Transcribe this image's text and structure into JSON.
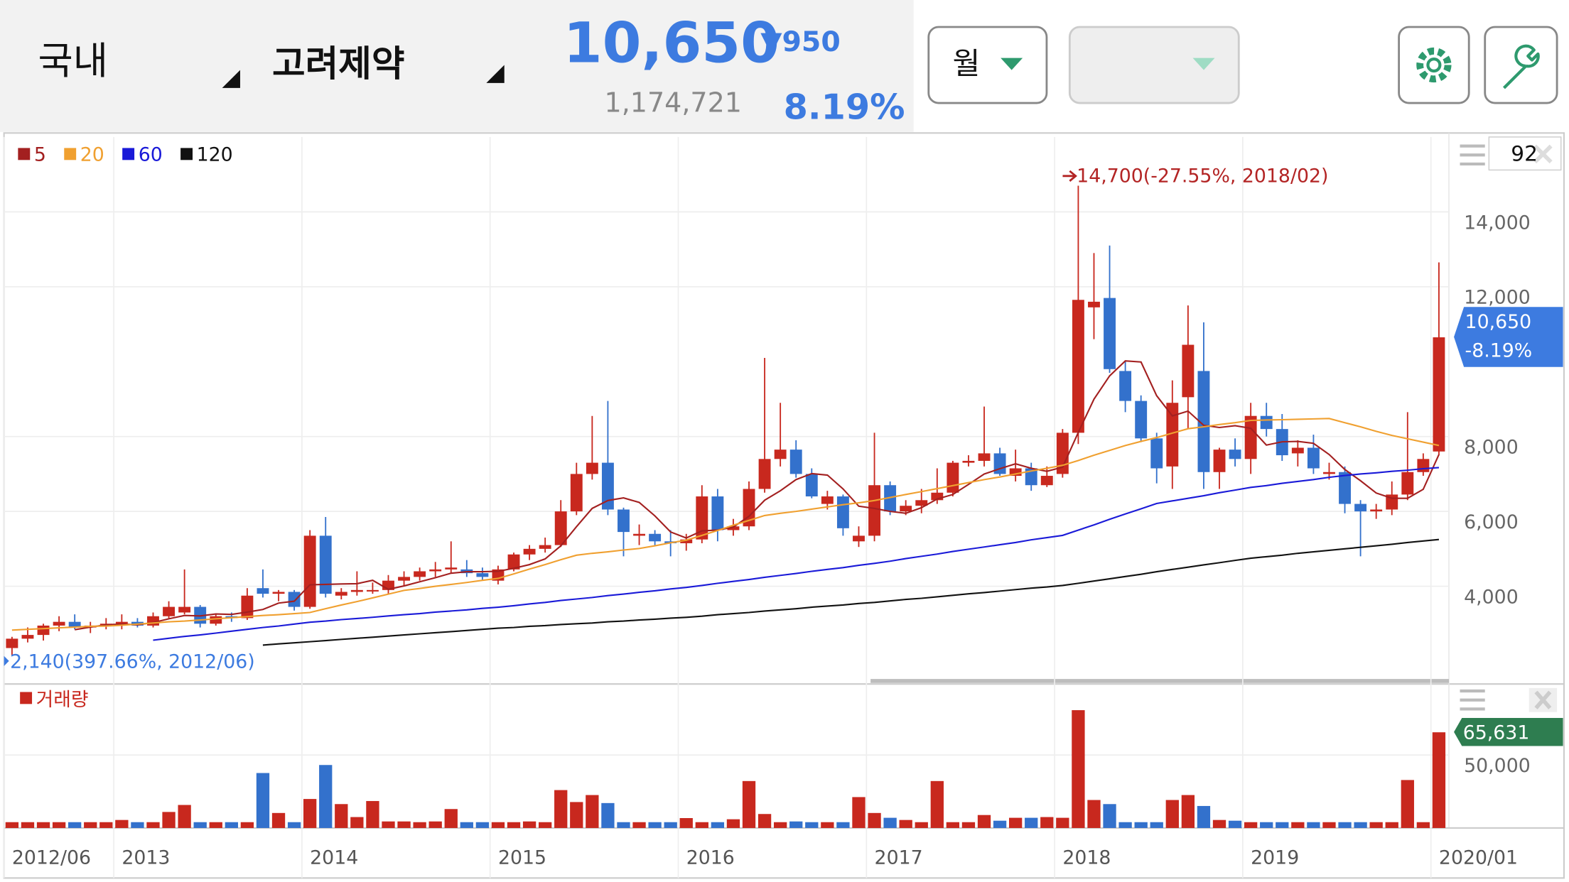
{
  "header": {
    "market": "국내",
    "stock": "고려제약",
    "price": "10,650",
    "change": "▼950",
    "volume": "1,174,721",
    "change_rate": "8.19%",
    "period": "월"
  },
  "chart_data": [
    {
      "type": "candlestick",
      "categories": [
        "2012/06",
        null,
        null,
        null,
        null,
        null,
        null,
        "2013",
        null,
        null,
        null,
        null,
        null,
        null,
        null,
        null,
        null,
        null,
        null,
        "2014",
        null,
        null,
        null,
        null,
        null,
        null,
        null,
        null,
        null,
        null,
        null,
        "2015",
        null,
        null,
        null,
        null,
        null,
        null,
        null,
        null,
        null,
        null,
        null,
        "2016",
        null,
        null,
        null,
        null,
        null,
        null,
        null,
        null,
        null,
        null,
        null,
        "2017",
        null,
        null,
        null,
        null,
        null,
        null,
        null,
        null,
        null,
        null,
        null,
        "2018",
        null,
        null,
        null,
        null,
        null,
        null,
        null,
        null,
        null,
        null,
        null,
        "2019",
        null,
        null,
        null,
        null,
        null,
        null,
        null,
        null,
        null,
        null,
        null,
        "2020/01"
      ],
      "ohlc": [
        [
          2350,
          2650,
          2140,
          2600
        ],
        [
          2600,
          2900,
          2500,
          2700
        ],
        [
          2700,
          3000,
          2550,
          2950
        ],
        [
          2950,
          3200,
          2800,
          3050
        ],
        [
          3050,
          3250,
          2850,
          2900
        ],
        [
          2900,
          3050,
          2750,
          2950
        ],
        [
          2950,
          3150,
          2850,
          3000
        ],
        [
          3000,
          3250,
          2850,
          3050
        ],
        [
          3050,
          3150,
          2900,
          2950
        ],
        [
          2950,
          3300,
          2900,
          3200
        ],
        [
          3200,
          3600,
          3150,
          3450
        ],
        [
          3300,
          4450,
          3250,
          3450
        ],
        [
          3450,
          3500,
          2900,
          3000
        ],
        [
          3000,
          3250,
          2950,
          3200
        ],
        [
          3200,
          3300,
          3050,
          3150
        ],
        [
          3150,
          3950,
          3100,
          3750
        ],
        [
          3950,
          4450,
          3700,
          3800
        ],
        [
          3800,
          3900,
          3600,
          3850
        ],
        [
          3850,
          3900,
          3350,
          3450
        ],
        [
          3450,
          5500,
          3400,
          5350
        ],
        [
          5350,
          5850,
          3700,
          3800
        ],
        [
          3750,
          3950,
          3650,
          3850
        ],
        [
          3850,
          4400,
          3750,
          3900
        ],
        [
          3900,
          4100,
          3800,
          3900
        ],
        [
          3900,
          4300,
          3800,
          4150
        ],
        [
          4150,
          4400,
          4000,
          4250
        ],
        [
          4250,
          4500,
          4150,
          4400
        ],
        [
          4400,
          4650,
          4250,
          4450
        ],
        [
          4450,
          5200,
          4350,
          4500
        ],
        [
          4450,
          4700,
          4250,
          4350
        ],
        [
          4350,
          4500,
          4150,
          4250
        ],
        [
          4150,
          4550,
          4050,
          4450
        ],
        [
          4450,
          4900,
          4400,
          4850
        ],
        [
          4850,
          5100,
          4700,
          5000
        ],
        [
          5000,
          5300,
          4900,
          5100
        ],
        [
          5100,
          6300,
          5050,
          6000
        ],
        [
          6000,
          7300,
          5900,
          7000
        ],
        [
          7000,
          8550,
          6850,
          7300
        ],
        [
          7300,
          8950,
          5900,
          6050
        ],
        [
          6050,
          6100,
          4800,
          5450
        ],
        [
          5350,
          5650,
          5100,
          5400
        ],
        [
          5400,
          5500,
          5100,
          5200
        ],
        [
          5200,
          5500,
          4800,
          5150
        ],
        [
          5150,
          5400,
          4950,
          5250
        ],
        [
          5250,
          6700,
          5150,
          6400
        ],
        [
          6400,
          6600,
          5200,
          5500
        ],
        [
          5500,
          5800,
          5350,
          5600
        ],
        [
          5600,
          6800,
          5500,
          6600
        ],
        [
          6600,
          10100,
          6500,
          7400
        ],
        [
          7400,
          8900,
          7200,
          7650
        ],
        [
          7650,
          7900,
          6900,
          7000
        ],
        [
          7000,
          7150,
          6350,
          6400
        ],
        [
          6200,
          6550,
          6050,
          6400
        ],
        [
          6400,
          6450,
          5350,
          5550
        ],
        [
          5200,
          5600,
          5050,
          5350
        ],
        [
          5350,
          8100,
          5200,
          6700
        ],
        [
          6700,
          6800,
          5900,
          6000
        ],
        [
          6000,
          6300,
          5900,
          6150
        ],
        [
          6150,
          6600,
          5950,
          6300
        ],
        [
          6300,
          7150,
          6200,
          6500
        ],
        [
          6500,
          7350,
          6400,
          7300
        ],
        [
          7300,
          7500,
          7200,
          7350
        ],
        [
          7350,
          8800,
          7200,
          7550
        ],
        [
          7550,
          7700,
          6950,
          7000
        ],
        [
          6950,
          7650,
          6800,
          7150
        ],
        [
          7150,
          7300,
          6550,
          6700
        ],
        [
          6700,
          7200,
          6650,
          6950
        ],
        [
          7000,
          8200,
          6900,
          8100
        ],
        [
          8100,
          14700,
          7800,
          11650
        ],
        [
          11450,
          12900,
          10600,
          11600
        ],
        [
          11700,
          13100,
          9700,
          9800
        ],
        [
          9750,
          10000,
          8650,
          8950
        ],
        [
          8950,
          9100,
          7850,
          7950
        ],
        [
          7950,
          8100,
          6750,
          7150
        ],
        [
          7200,
          9500,
          6600,
          8900
        ],
        [
          9050,
          11500,
          8200,
          10450
        ],
        [
          9750,
          11050,
          6600,
          7050
        ],
        [
          7050,
          7700,
          6600,
          7650
        ],
        [
          7650,
          7950,
          7200,
          7400
        ],
        [
          7400,
          8900,
          7000,
          8550
        ],
        [
          8550,
          8900,
          8000,
          8200
        ],
        [
          8200,
          8600,
          7350,
          7500
        ],
        [
          7550,
          7900,
          7200,
          7700
        ],
        [
          7700,
          8050,
          7000,
          7150
        ],
        [
          7000,
          7300,
          6850,
          7050
        ],
        [
          7050,
          7200,
          5950,
          6200
        ],
        [
          6200,
          6300,
          4800,
          6000
        ],
        [
          6000,
          6200,
          5800,
          6050
        ],
        [
          6050,
          6800,
          5900,
          6450
        ],
        [
          6450,
          8650,
          6300,
          7050
        ],
        [
          7050,
          7550,
          6950,
          7400
        ],
        [
          7600,
          12650,
          7500,
          10650
        ]
      ],
      "up_color": "#c8281e",
      "down_color": "#3371cc",
      "series": [
        {
          "name": "5",
          "color": "#a32020",
          "values": [
            null,
            null,
            null,
            null,
            2840,
            2910,
            2970,
            2990,
            2970,
            3030,
            3130,
            3220,
            3210,
            3260,
            3250,
            3310,
            3380,
            3550,
            3600,
            4040,
            4050,
            4060,
            4070,
            4160,
            3920,
            4010,
            4120,
            4230,
            4350,
            4390,
            4390,
            4400,
            4480,
            4580,
            4730,
            5080,
            5590,
            6080,
            6290,
            6360,
            6240,
            5880,
            5450,
            5290,
            5480,
            5500,
            5580,
            5870,
            6300,
            6550,
            6850,
            7010,
            6970,
            6600,
            6140,
            6080,
            6000,
            5950,
            6100,
            6330,
            6450,
            6720,
            7000,
            7140,
            7270,
            7150,
            7070,
            7180,
            8110,
            9000,
            9620,
            10020,
            9990,
            9090,
            8550,
            8680,
            8300,
            8240,
            8290,
            8220,
            7770,
            7860,
            7870,
            7820,
            7520,
            7120,
            6820,
            6490,
            6350,
            6350,
            6590,
            7520
          ]
        },
        {
          "name": "20",
          "color": "#f0a030",
          "values": [
            2830,
            2850,
            2870,
            2890,
            2910,
            2930,
            2940,
            2960,
            2990,
            3020,
            3050,
            3070,
            3100,
            3130,
            3160,
            3190,
            3220,
            3240,
            3270,
            3300,
            3400,
            3500,
            3590,
            3690,
            3790,
            3890,
            3940,
            4000,
            4050,
            4100,
            4160,
            4210,
            4330,
            4460,
            4580,
            4710,
            4830,
            4880,
            4920,
            4970,
            5010,
            5080,
            5160,
            5230,
            5360,
            5490,
            5630,
            5760,
            5890,
            5950,
            6000,
            6060,
            6120,
            6180,
            6230,
            6290,
            6370,
            6450,
            6530,
            6610,
            6690,
            6770,
            6850,
            6920,
            7000,
            7080,
            7150,
            7230,
            7360,
            7500,
            7630,
            7760,
            7870,
            7970,
            8090,
            8210,
            8260,
            8320,
            8370,
            8430,
            8440,
            8450,
            8460,
            8470,
            8480,
            8370,
            8260,
            8140,
            8030,
            7940,
            7850,
            7760
          ]
        },
        {
          "name": "60",
          "color": "#1a1ad8",
          "values": [
            null,
            null,
            null,
            null,
            null,
            null,
            null,
            null,
            null,
            2560,
            2610,
            2660,
            2700,
            2750,
            2800,
            2850,
            2900,
            2940,
            2990,
            3040,
            3070,
            3110,
            3140,
            3170,
            3210,
            3240,
            3270,
            3310,
            3340,
            3370,
            3410,
            3440,
            3480,
            3530,
            3570,
            3620,
            3660,
            3700,
            3750,
            3790,
            3840,
            3880,
            3930,
            3970,
            4020,
            4080,
            4130,
            4180,
            4240,
            4290,
            4340,
            4400,
            4450,
            4500,
            4560,
            4610,
            4670,
            4740,
            4800,
            4860,
            4930,
            4990,
            5050,
            5110,
            5170,
            5240,
            5300,
            5360,
            5500,
            5640,
            5790,
            5930,
            6070,
            6210,
            6280,
            6350,
            6420,
            6500,
            6570,
            6640,
            6690,
            6750,
            6800,
            6850,
            6910,
            6960,
            7000,
            7030,
            7070,
            7100,
            7140,
            7170
          ]
        },
        {
          "name": "120",
          "color": "#111111",
          "values": [
            null,
            null,
            null,
            null,
            null,
            null,
            null,
            null,
            null,
            null,
            null,
            null,
            null,
            null,
            null,
            null,
            2430,
            2460,
            2490,
            2520,
            2550,
            2580,
            2610,
            2640,
            2670,
            2700,
            2730,
            2760,
            2790,
            2820,
            2850,
            2880,
            2900,
            2930,
            2950,
            2980,
            3000,
            3020,
            3050,
            3070,
            3100,
            3120,
            3150,
            3170,
            3200,
            3240,
            3270,
            3300,
            3340,
            3370,
            3400,
            3440,
            3470,
            3500,
            3540,
            3570,
            3610,
            3650,
            3680,
            3720,
            3760,
            3800,
            3830,
            3870,
            3910,
            3950,
            3980,
            4020,
            4080,
            4140,
            4200,
            4260,
            4320,
            4390,
            4450,
            4510,
            4570,
            4630,
            4690,
            4750,
            4790,
            4830,
            4880,
            4920,
            4960,
            5000,
            5040,
            5080,
            5120,
            5170,
            5210,
            5250
          ]
        }
      ],
      "ylim": [
        1550,
        16000
      ],
      "yticks": [
        {
          "value": 4000,
          "label": "4,000"
        },
        {
          "value": 6000,
          "label": "6,000"
        },
        {
          "value": 8000,
          "label": "8,000"
        },
        {
          "value": 12000,
          "label": "12,000"
        },
        {
          "value": 14000,
          "label": "14,000"
        }
      ],
      "grid": true,
      "annotations": {
        "high": "14,700(-27.55%, 2018/02)",
        "low": "2,140(397.66%, 2012/06)"
      },
      "last_tag": {
        "price": "10,650",
        "change": "-8.19%"
      },
      "zoom_count": 92
    },
    {
      "type": "bar",
      "series": [
        {
          "name": "거래량",
          "color": "#c8281e",
          "values": [
            4000,
            4000,
            4000,
            4000,
            4000,
            4000,
            4000,
            5500,
            4000,
            4000,
            11000,
            15800,
            4000,
            4000,
            4000,
            4000,
            37700,
            10300,
            4000,
            19900,
            43200,
            16400,
            7500,
            18500,
            4500,
            4500,
            4000,
            4500,
            13000,
            4000,
            4000,
            4000,
            4000,
            4500,
            4000,
            26000,
            17800,
            22600,
            17100,
            4000,
            4000,
            4000,
            4000,
            6800,
            4000,
            4000,
            6000,
            32200,
            9600,
            4000,
            4500,
            4000,
            4000,
            4000,
            21200,
            10300,
            7000,
            5500,
            4000,
            32200,
            4000,
            4000,
            8900,
            5000,
            7000,
            7000,
            7500,
            7000,
            80800,
            19200,
            16400,
            4000,
            4000,
            4000,
            19200,
            22600,
            15100,
            5500,
            5000,
            4000,
            4000,
            4000,
            4000,
            4000,
            4000,
            4000,
            4000,
            4000,
            4000,
            32900,
            4000,
            65631
          ]
        }
      ],
      "ylim": [
        0,
        96000
      ],
      "yticks": [
        {
          "value": 50000,
          "label": "50,000"
        }
      ],
      "last_value_label": "65,631"
    }
  ]
}
